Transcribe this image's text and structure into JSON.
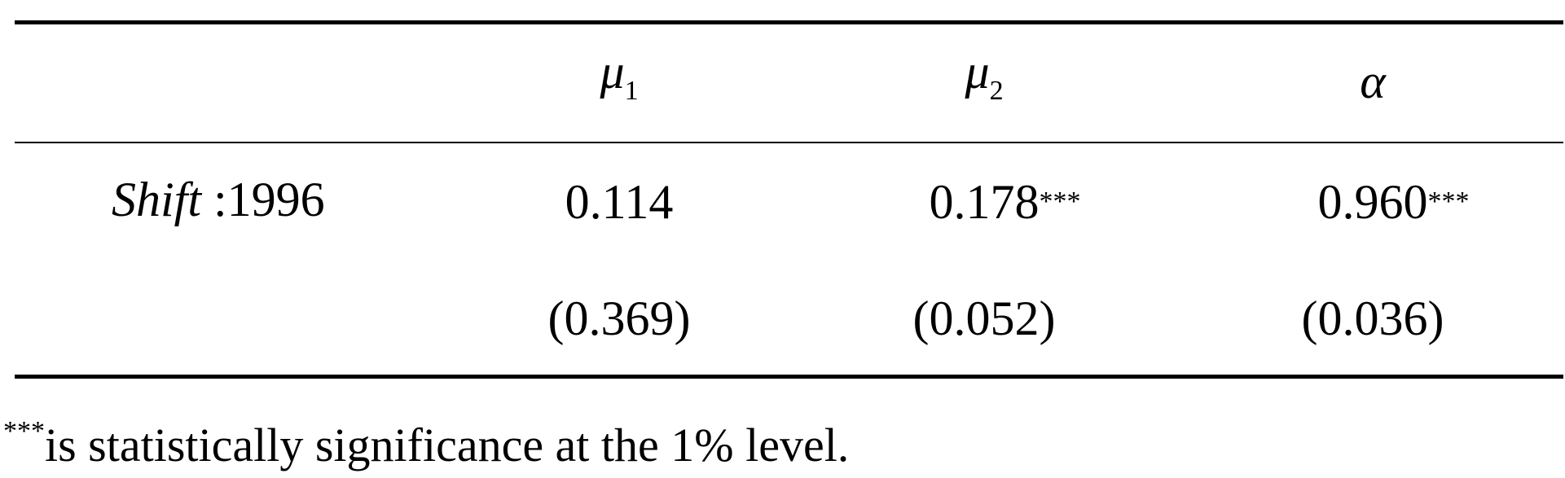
{
  "table": {
    "header": [
      {
        "symbol": "μ",
        "subscript": "1"
      },
      {
        "symbol": "μ",
        "subscript": "2"
      },
      {
        "symbol": "α"
      }
    ],
    "rows": [
      {
        "label": {
          "italic": "Shift",
          "text": ":1996"
        },
        "cells": [
          {
            "text": "0.114"
          },
          {
            "text": "0.178",
            "sup": "***"
          },
          {
            "text": "0.960",
            "sup": "***"
          }
        ]
      },
      {
        "cells": [
          {
            "text": "(0.369)"
          },
          {
            "text": "(0.052)"
          },
          {
            "text": "(0.036)"
          }
        ]
      }
    ]
  },
  "footnote": {
    "mark": "***",
    "text": "is statistically significance at the 1% level."
  }
}
